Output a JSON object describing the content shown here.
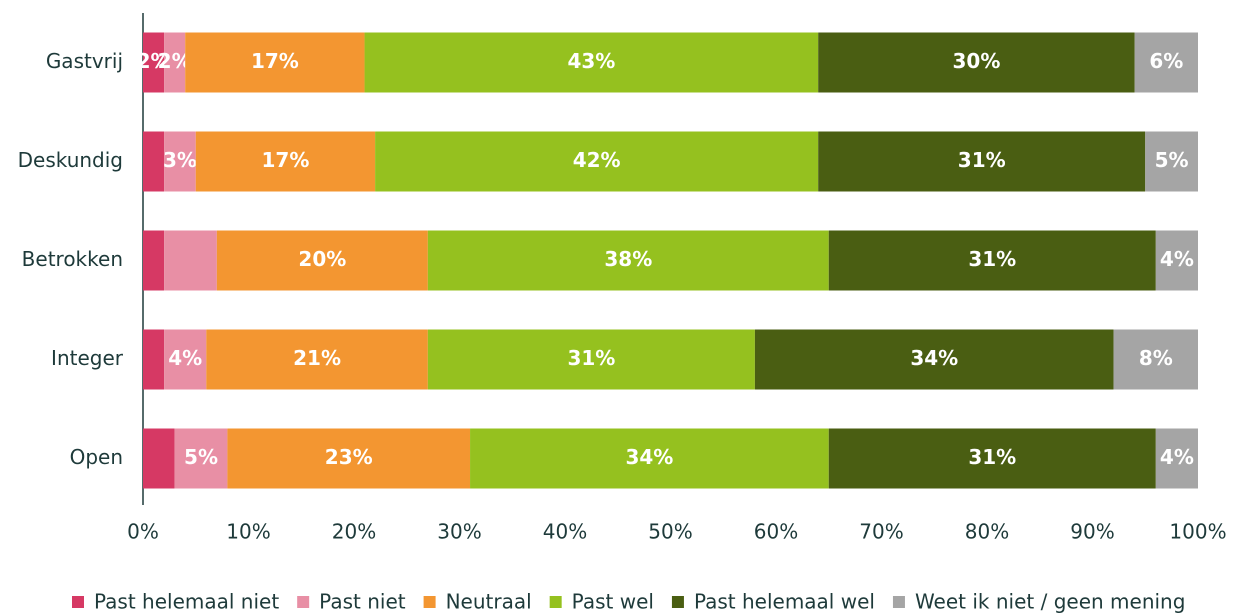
{
  "chart_data": {
    "type": "stacked_bar_horizontal",
    "categories": [
      "Gastvrij",
      "Deskundig",
      "Betrokken",
      "Integer",
      "Open"
    ],
    "series": [
      {
        "name": "Past helemaal niet",
        "color": "#d63964",
        "values": [
          2,
          2,
          2,
          2,
          3
        ],
        "value_labels": [
          "2%",
          null,
          null,
          null,
          null
        ]
      },
      {
        "name": "Past niet",
        "color": "#e88fa5",
        "values": [
          2,
          3,
          5,
          4,
          5
        ],
        "value_labels": [
          "2%",
          "3%",
          null,
          "4%",
          "5%"
        ]
      },
      {
        "name": "Neutraal",
        "color": "#f39631",
        "values": [
          17,
          17,
          20,
          21,
          23
        ],
        "value_labels": [
          "17%",
          "17%",
          "20%",
          "21%",
          "23%"
        ]
      },
      {
        "name": "Past wel",
        "color": "#95c11f",
        "values": [
          43,
          42,
          38,
          31,
          34
        ],
        "value_labels": [
          "43%",
          "42%",
          "38%",
          "31%",
          "34%"
        ]
      },
      {
        "name": "Past helemaal wel",
        "color": "#4a5e12",
        "values": [
          30,
          31,
          31,
          34,
          31
        ],
        "value_labels": [
          "30%",
          "31%",
          "31%",
          "34%",
          "31%"
        ]
      },
      {
        "name": "Weet ik niet / geen mening",
        "color": "#a5a5a5",
        "values": [
          6,
          5,
          4,
          8,
          4
        ],
        "value_labels": [
          "6%",
          "5%",
          "4%",
          "8%",
          "4%"
        ]
      }
    ],
    "xlim": [
      0,
      100
    ],
    "xticks": [
      {
        "value": 0,
        "label": "0%"
      },
      {
        "value": 10,
        "label": "10%"
      },
      {
        "value": 20,
        "label": "20%"
      },
      {
        "value": 30,
        "label": "30%"
      },
      {
        "value": 40,
        "label": "40%"
      },
      {
        "value": 50,
        "label": "50%"
      },
      {
        "value": 60,
        "label": "60%"
      },
      {
        "value": 70,
        "label": "70%"
      },
      {
        "value": 80,
        "label": "80%"
      },
      {
        "value": 90,
        "label": "90%"
      },
      {
        "value": 100,
        "label": "100%"
      }
    ],
    "legend": "bottom"
  }
}
